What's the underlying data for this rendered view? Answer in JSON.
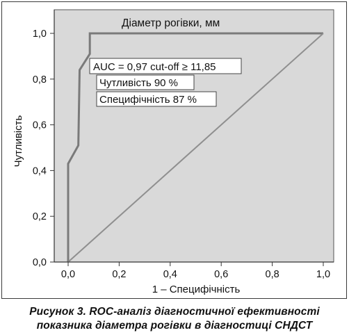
{
  "chart_data": {
    "type": "line",
    "title": "Діаметр рогівки, мм",
    "xlabel": "1 – Специфічність",
    "ylabel": "Чутливість",
    "xlim": [
      0,
      1
    ],
    "ylim": [
      0,
      1
    ],
    "x_ticks": [
      "0,0",
      "0,2",
      "0,4",
      "0,6",
      "0,8",
      "1,0"
    ],
    "y_ticks": [
      "0,0",
      "0,2",
      "0,4",
      "0,6",
      "0,8",
      "1,0"
    ],
    "grid": false,
    "plot_background": "#d9d9d9",
    "series": [
      {
        "role": "roc-curve",
        "color": "#7a7a7a",
        "points": [
          [
            0,
            0
          ],
          [
            0,
            0.43
          ],
          [
            0.04,
            0.51
          ],
          [
            0.045,
            0.84
          ],
          [
            0.085,
            0.91
          ],
          [
            0.085,
            1.0
          ],
          [
            1.0,
            1.0
          ]
        ]
      },
      {
        "role": "reference-diagonal",
        "color": "#8f8f8f",
        "points": [
          [
            0,
            0
          ],
          [
            1,
            1
          ]
        ]
      }
    ],
    "annotations": [
      "AUC = 0,97 cut-off ≥ 11,85",
      "Чутливість 90 %",
      "Специфічність 87 %"
    ]
  },
  "caption": {
    "line1": "Рисунок 3.  ROC-аналіз діагностичної ефективності",
    "line2": "показника діаметра рогівки в діагностиці СНДСТ"
  }
}
